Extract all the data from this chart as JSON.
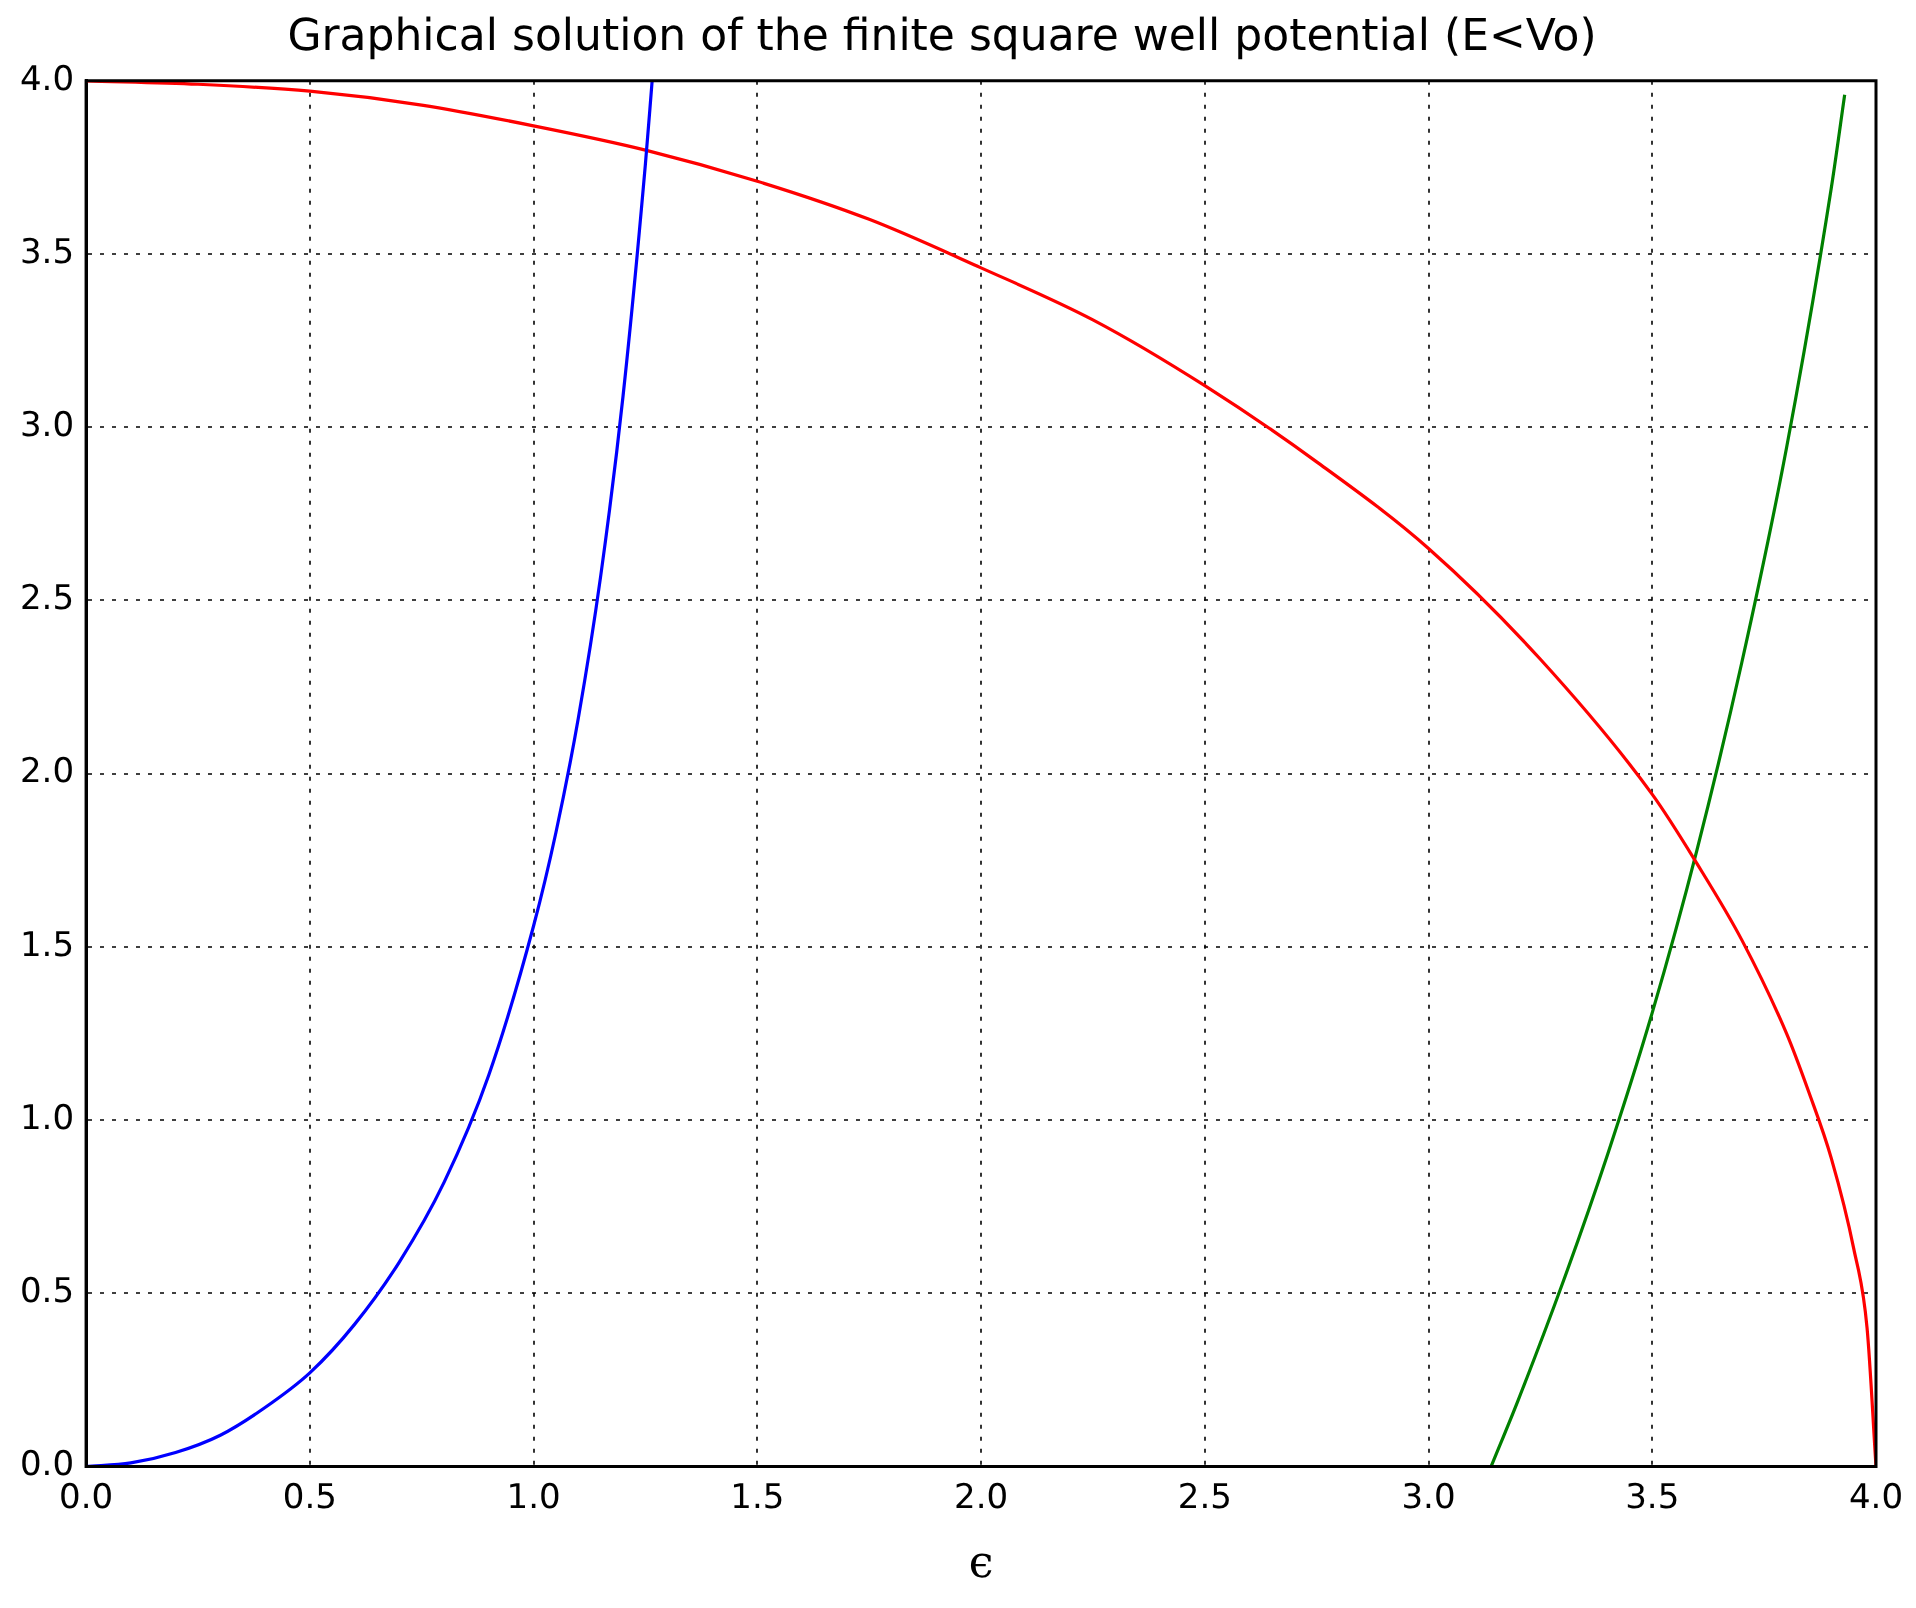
{
  "chart_data": {
    "type": "line",
    "title": "Graphical solution of the finite square well potential (E<Vo)",
    "xlabel": "ϵ",
    "xlim": [
      0,
      4
    ],
    "ylim": [
      0,
      4
    ],
    "xticks": [
      {
        "value": 0,
        "label": "0.0"
      },
      0.5,
      {
        "value": 1,
        "label": "1.0"
      },
      1.5,
      {
        "value": 2,
        "label": "2.0"
      },
      2.5,
      {
        "value": 3,
        "label": "3.0"
      },
      3.5,
      {
        "value": 4,
        "label": "4.0"
      }
    ],
    "yticks": [
      {
        "value": 0,
        "label": "0.0"
      },
      0.5,
      {
        "value": 1,
        "label": "1.0"
      },
      1.5,
      {
        "value": 2,
        "label": "2.0"
      },
      2.5,
      {
        "value": 3,
        "label": "3.0"
      },
      3.5,
      {
        "value": 4,
        "label": "4.0"
      }
    ],
    "grid": true,
    "line_style": "solid",
    "marker": "none",
    "legend": false,
    "series": [
      {
        "color": "#0000ff",
        "x": [
          0,
          0.1,
          0.2,
          0.3,
          0.4,
          0.5,
          0.6,
          0.7,
          0.8,
          0.9,
          1.0,
          1.05,
          1.1,
          1.15,
          1.2,
          1.25,
          1.265
        ],
        "values": [
          0,
          0.01,
          0.04,
          0.09,
          0.17,
          0.27,
          0.41,
          0.59,
          0.82,
          1.13,
          1.56,
          1.83,
          2.16,
          2.57,
          3.09,
          3.76,
          4.0
        ]
      },
      {
        "color": "#ff0000",
        "x": [
          0,
          0.25,
          0.5,
          0.75,
          1.0,
          1.25,
          1.5,
          1.75,
          2.0,
          2.25,
          2.5,
          2.75,
          3.0,
          3.25,
          3.5,
          3.6,
          3.7,
          3.8,
          3.85,
          3.9,
          3.95,
          3.98,
          4.0
        ],
        "values": [
          4.0,
          3.99,
          3.97,
          3.93,
          3.87,
          3.8,
          3.71,
          3.6,
          3.46,
          3.31,
          3.12,
          2.9,
          2.65,
          2.33,
          1.94,
          1.74,
          1.52,
          1.25,
          1.08,
          0.89,
          0.63,
          0.4,
          0
        ]
      },
      {
        "color": "#008000",
        "x": [
          3.14,
          3.2,
          3.3,
          3.4,
          3.5,
          3.6,
          3.7,
          3.8,
          3.9,
          3.93
        ],
        "values": [
          0,
          0.19,
          0.53,
          0.9,
          1.31,
          1.78,
          2.32,
          2.94,
          3.69,
          3.96
        ]
      }
    ]
  }
}
